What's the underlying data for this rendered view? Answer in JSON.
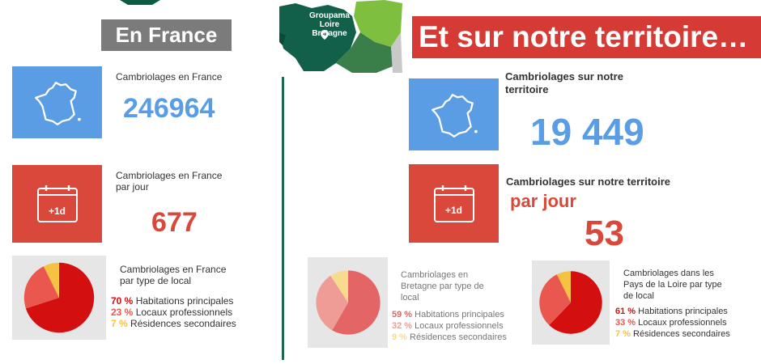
{
  "left": {
    "title": "En France",
    "card1": {
      "label": "Cambriolages en France",
      "value": "246964"
    },
    "card2": {
      "label_line1": "Cambriolages en France",
      "label_line2": "par jour",
      "badge": "+1d",
      "value": "677"
    },
    "card3": {
      "label_line1": "Cambriolages en France",
      "label_line2": "par type de local",
      "items": [
        {
          "pct": "70 %",
          "text": "Habitations principales"
        },
        {
          "pct": "23 %",
          "text": "Locaux professionnels"
        },
        {
          "pct": "7 %",
          "text": "Résidences secondaires"
        }
      ]
    }
  },
  "right": {
    "title": "Et sur notre territoire…",
    "map_label": "Groupama Loire Bretagne",
    "card1": {
      "label_line1": "Cambriolages sur notre",
      "label_line2": "territoire",
      "value": "19 449"
    },
    "card2": {
      "label": "Cambriolages sur notre territoire",
      "label_sub": "par jour",
      "badge": "+1d",
      "value": "53"
    },
    "bretagne": {
      "label_line1": "Cambriolages en",
      "label_line2": "Bretagne par type de",
      "label_line3": "local",
      "items": [
        {
          "pct": "59 %",
          "text": "Habitations principales"
        },
        {
          "pct": "32 %",
          "text": "Locaux professionnels"
        },
        {
          "pct": "9 %",
          "text": "Résidences secondaires"
        }
      ]
    },
    "pdl": {
      "label_line1": "Cambriolages dans les",
      "label_line2": "Pays de la Loire par type",
      "label_line3": "de local",
      "items": [
        {
          "pct": "61 %",
          "text": "Habitations principales"
        },
        {
          "pct": "33 %",
          "text": "Locaux professionnels"
        },
        {
          "pct": "7 %",
          "text": "Résidences secondaires"
        }
      ]
    }
  },
  "colors": {
    "blue": "#5a9de4",
    "red": "#d9483b",
    "pie_red": "#d40f10",
    "pie_salmon": "#e9574f",
    "pie_yellow": "#f5c242",
    "pie_light_red": "#e46565",
    "pie_light_pink": "#f09c96",
    "pie_light_yellow": "#f9db8f",
    "green": "#0d5c3f"
  }
}
